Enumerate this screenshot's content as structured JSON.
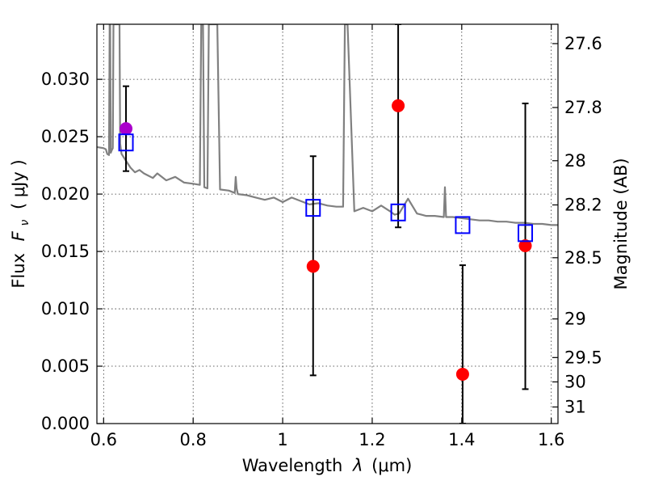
{
  "chart_data": {
    "type": "scatter",
    "xlabel_prefix": "Wavelength",
    "xlabel_symbol": "λ",
    "xlabel_unit": "(μm)",
    "ylabel_prefix": "Flux",
    "ylabel_symbol": "F",
    "ylabel_sub": "ν",
    "ylabel_unit": "( μJy )",
    "y2label": "Magnitude (AB)",
    "xlim": [
      0.585,
      1.615
    ],
    "ylim": [
      0.0,
      0.0348
    ],
    "grid": true,
    "x_ticks": [
      0.6,
      0.8,
      1.0,
      1.2,
      1.4,
      1.6
    ],
    "x_tick_labels": [
      "0.6",
      "0.8",
      "1",
      "1.2",
      "1.4",
      "1.6"
    ],
    "y_ticks": [
      0.0,
      0.005,
      0.01,
      0.015,
      0.02,
      0.025,
      0.03
    ],
    "y_tick_labels": [
      "0.000",
      "0.005",
      "0.010",
      "0.015",
      "0.020",
      "0.025",
      "0.030"
    ],
    "y2_ticks": [
      27.6,
      27.8,
      28.0,
      28.2,
      28.5,
      29.0,
      29.5,
      30.0,
      31.0
    ],
    "y2_tick_labels": [
      "27.6",
      "27.8",
      "28",
      "28.2",
      "28.5",
      "29",
      "29.5",
      "30",
      "31"
    ],
    "colors": {
      "model": "#808080",
      "observed": "#ff0000",
      "observed_optical": "#aa00cc",
      "synthetic": "#0000ff",
      "errorbar": "#000000"
    },
    "observed_points": [
      {
        "x": 0.65,
        "y": 0.0257,
        "err_low": 0.022,
        "err_high": 0.0294,
        "color": "observed_optical"
      },
      {
        "x": 1.068,
        "y": 0.0137,
        "err_low": 0.0042,
        "err_high": 0.0233,
        "color": "observed"
      },
      {
        "x": 1.258,
        "y": 0.0277,
        "err_low": 0.0171,
        "err_high": 0.0348,
        "color": "observed"
      },
      {
        "x": 1.402,
        "y": 0.0043,
        "err_low": 0.0,
        "err_high": 0.0138,
        "color": "observed"
      },
      {
        "x": 1.542,
        "y": 0.0155,
        "err_low": 0.003,
        "err_high": 0.0279,
        "color": "observed"
      }
    ],
    "synthetic_points": [
      {
        "x": 0.65,
        "y": 0.0245
      },
      {
        "x": 1.068,
        "y": 0.0188
      },
      {
        "x": 1.258,
        "y": 0.0184
      },
      {
        "x": 1.402,
        "y": 0.0173
      },
      {
        "x": 1.542,
        "y": 0.0166
      }
    ],
    "model_spectrum": {
      "x": [
        0.585,
        0.6,
        0.605,
        0.608,
        0.612,
        0.6135,
        0.6145,
        0.616,
        0.618,
        0.6205,
        0.622,
        0.6245,
        0.6255,
        0.627,
        0.631,
        0.6325,
        0.634,
        0.6355,
        0.637,
        0.64,
        0.65,
        0.66,
        0.67,
        0.68,
        0.69,
        0.7,
        0.71,
        0.72,
        0.74,
        0.76,
        0.78,
        0.8,
        0.815,
        0.818,
        0.8185,
        0.8215,
        0.822,
        0.825,
        0.832,
        0.835,
        0.84,
        0.843,
        0.847,
        0.8475,
        0.8535,
        0.854,
        0.86,
        0.88,
        0.893,
        0.895,
        0.897,
        0.9,
        0.92,
        0.94,
        0.96,
        0.98,
        1.0,
        1.02,
        1.04,
        1.06,
        1.08,
        1.1,
        1.12,
        1.135,
        1.139,
        1.1395,
        1.1445,
        1.145,
        1.16,
        1.18,
        1.2,
        1.22,
        1.24,
        1.25,
        1.26,
        1.28,
        1.3,
        1.31,
        1.32,
        1.34,
        1.36,
        1.3625,
        1.365,
        1.38,
        1.4,
        1.42,
        1.44,
        1.46,
        1.48,
        1.5,
        1.52,
        1.54,
        1.56,
        1.58,
        1.6,
        1.615
      ],
      "y": [
        0.0241,
        0.024,
        0.0239,
        0.0235,
        0.0234,
        0.0348,
        0.0348,
        0.0236,
        0.0238,
        0.024,
        0.0348,
        0.0348,
        0.0348,
        0.0348,
        0.0348,
        0.0348,
        0.0348,
        0.0348,
        0.0244,
        0.0235,
        0.0229,
        0.0223,
        0.0219,
        0.0221,
        0.0218,
        0.0216,
        0.0214,
        0.0218,
        0.0212,
        0.0215,
        0.021,
        0.0209,
        0.0208,
        0.0348,
        0.0348,
        0.0348,
        0.0348,
        0.0206,
        0.0205,
        0.0348,
        0.0348,
        0.0348,
        0.0348,
        0.0348,
        0.0348,
        0.0348,
        0.0204,
        0.0203,
        0.0201,
        0.0215,
        0.0205,
        0.02,
        0.0199,
        0.0197,
        0.0195,
        0.0197,
        0.0193,
        0.0197,
        0.0194,
        0.0191,
        0.0192,
        0.019,
        0.0189,
        0.0189,
        0.0348,
        0.0348,
        0.0348,
        0.0348,
        0.0185,
        0.0188,
        0.0185,
        0.019,
        0.0185,
        0.0182,
        0.0183,
        0.0196,
        0.0183,
        0.0182,
        0.0181,
        0.0181,
        0.018,
        0.0206,
        0.018,
        0.018,
        0.0179,
        0.0178,
        0.0177,
        0.0177,
        0.0176,
        0.0176,
        0.0175,
        0.0175,
        0.0174,
        0.0174,
        0.0173,
        0.0173
      ]
    }
  }
}
